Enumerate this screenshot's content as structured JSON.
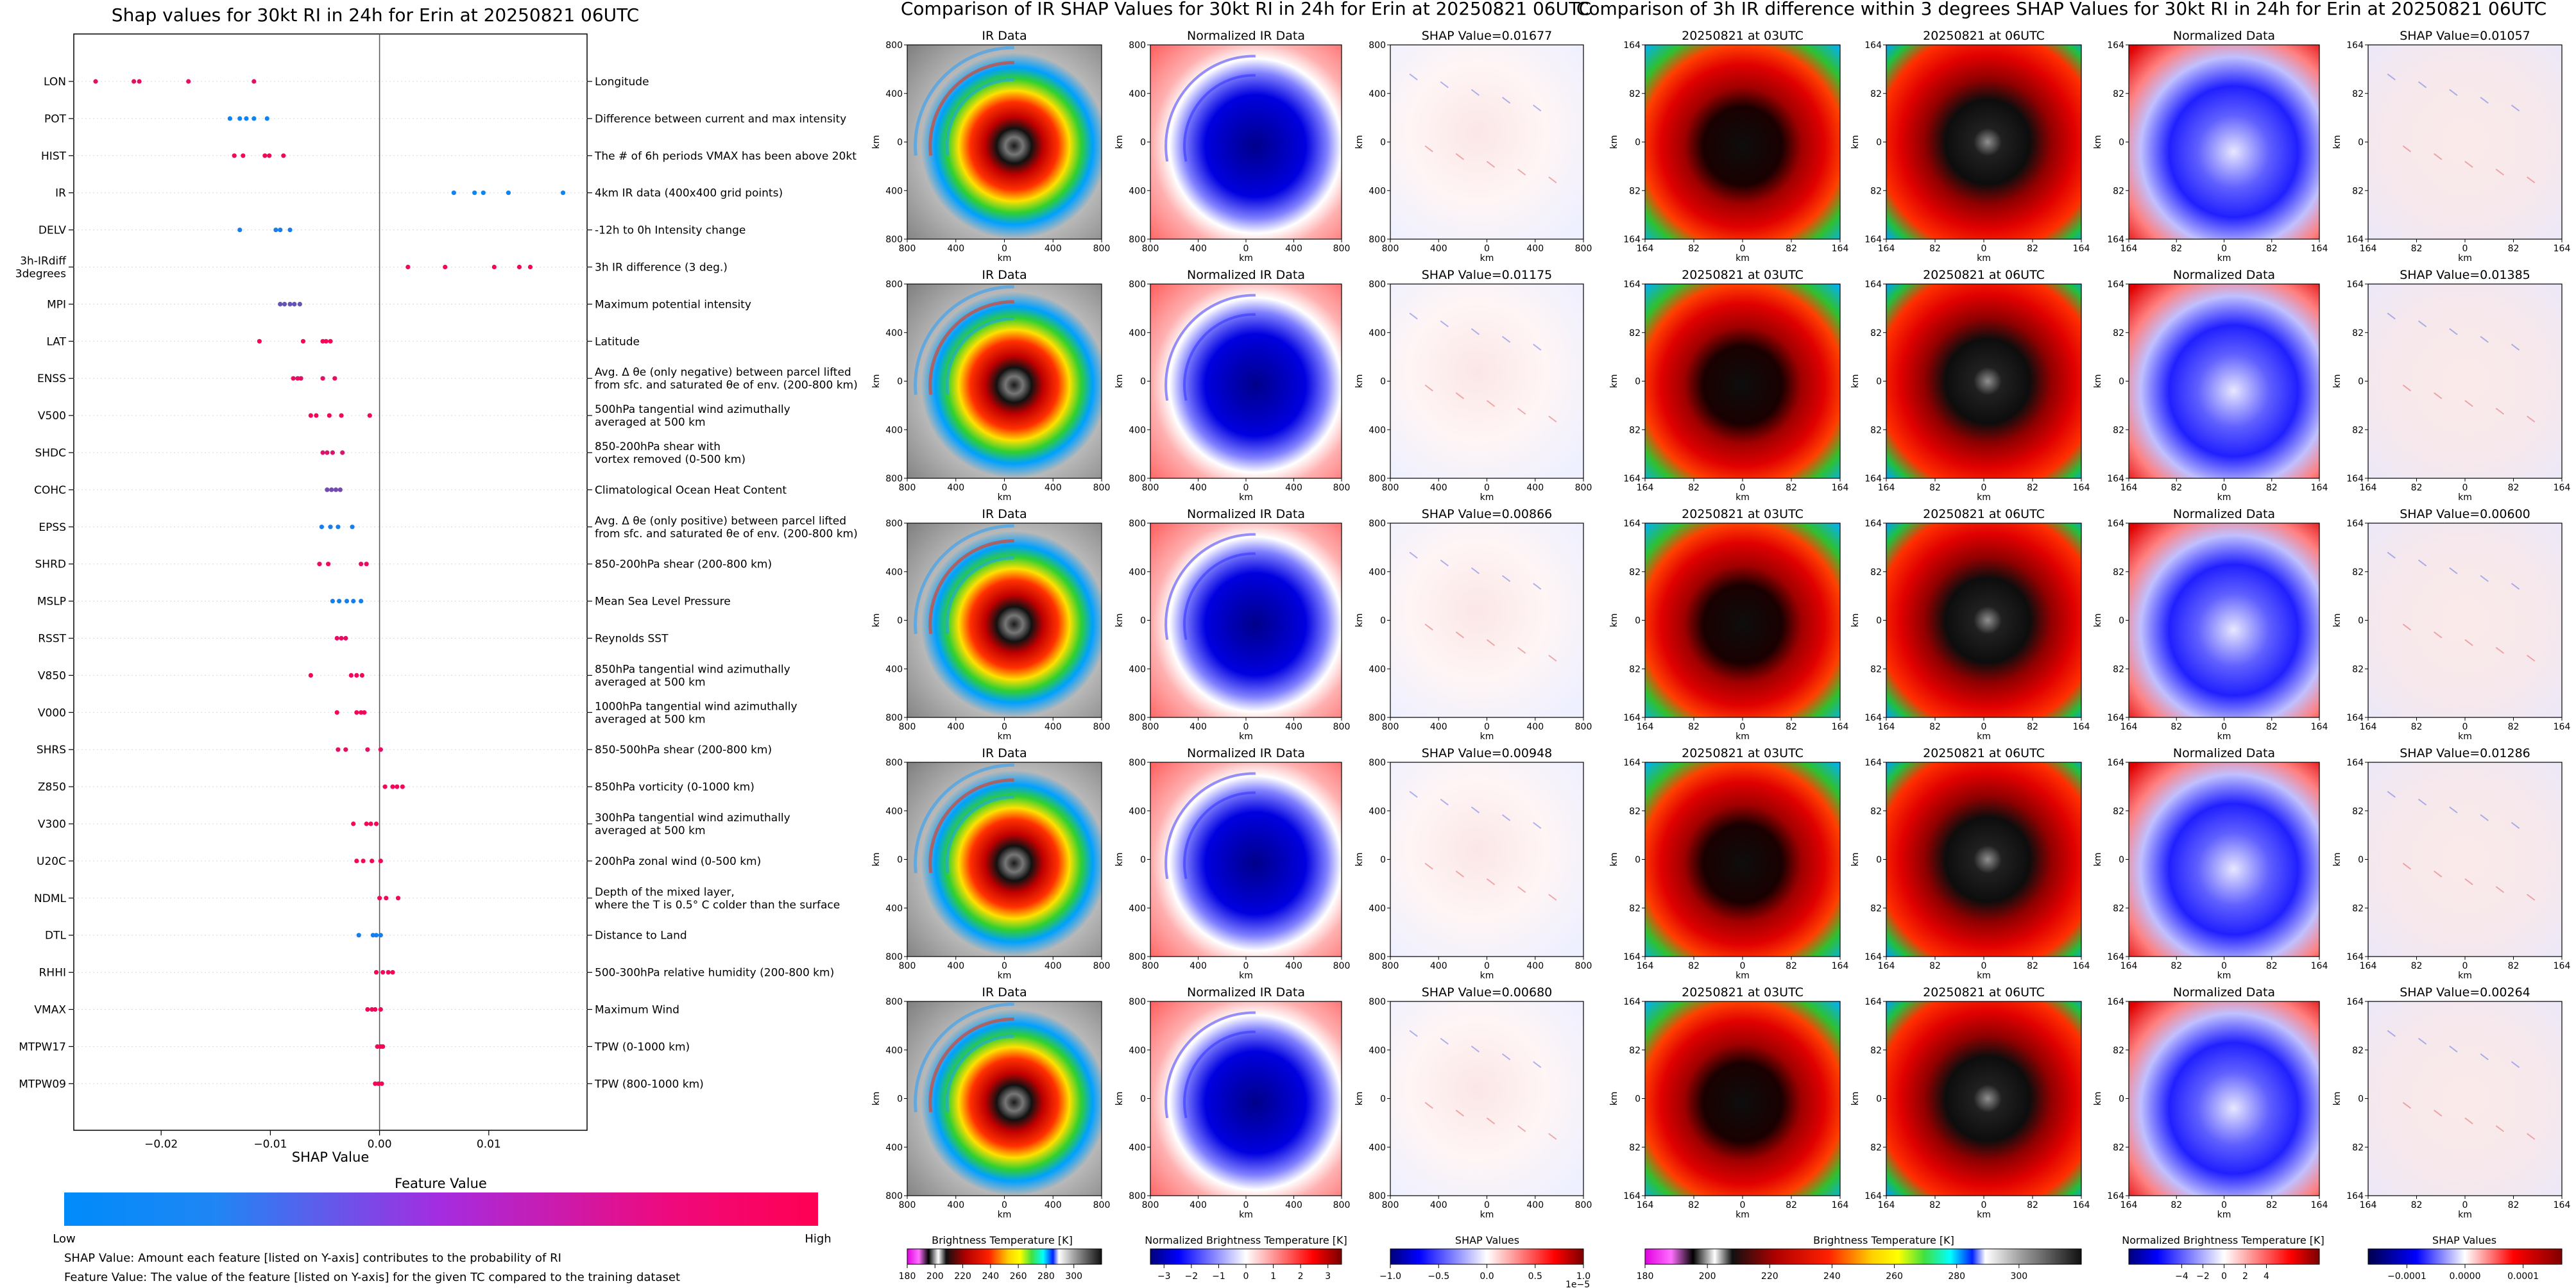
{
  "shap_panel": {
    "title": "Shap values for 30kt RI in 24h for Erin at 20250821 06UTC",
    "xlabel": "SHAP Value",
    "xticks": [
      "−0.02",
      "−0.01",
      "0.00",
      "0.01"
    ],
    "colorbar_title": "Feature Value",
    "colorbar_low": "Low",
    "colorbar_high": "High",
    "note1": "SHAP Value: Amount each feature [listed on Y-axis] contributes to the probability of RI",
    "note2": "Feature Value: The value of the feature [listed on Y-axis] for the given TC compared to the training dataset"
  },
  "ir_grid": {
    "title": "Comparison of IR SHAP Values for 30kt RI in 24h for Erin at 20250821 06UTC",
    "col_titles": [
      "IR Data",
      "Normalized IR Data"
    ],
    "shap_titles": [
      "SHAP Value=0.01677",
      "SHAP Value=0.01175",
      "SHAP Value=0.00866",
      "SHAP Value=0.00948",
      "SHAP Value=0.00680"
    ],
    "x_ticks": [
      "800",
      "400",
      "0",
      "400",
      "800"
    ],
    "y_ticks": [
      "800",
      "400",
      "0",
      "400",
      "800"
    ],
    "axis_label": "km",
    "cbar1_label": "Brightness Temperature [K]",
    "cbar1_ticks": [
      "180",
      "200",
      "220",
      "240",
      "260",
      "280",
      "300"
    ],
    "cbar2_label": "Normalized Brightness Temperature [K]",
    "cbar2_ticks": [
      "−3",
      "−2",
      "−1",
      "0",
      "1",
      "2",
      "3"
    ],
    "cbar3_label": "SHAP Values",
    "cbar3_ticks": [
      "−1.0",
      "−0.5",
      "0.0",
      "0.5",
      "1.0"
    ],
    "cbar3_exp": "1e−5"
  },
  "diff_grid": {
    "title": "Comparison of 3h IR difference within 3 degrees SHAP Values for 30kt RI in 24h for Erin at 20250821 06UTC",
    "col_titles": [
      "20250821 at 03UTC",
      "20250821 at 06UTC",
      "Normalized Data"
    ],
    "shap_titles": [
      "SHAP Value=0.01057",
      "SHAP Value=0.01385",
      "SHAP Value=0.00600",
      "SHAP Value=0.01286",
      "SHAP Value=0.00264"
    ],
    "x_ticks": [
      "164",
      "82",
      "0",
      "82",
      "164"
    ],
    "y_ticks": [
      "164",
      "82",
      "0",
      "82",
      "164"
    ],
    "axis_label": "km",
    "cbar1_label": "Brightness Temperature [K]",
    "cbar1_ticks": [
      "180",
      "200",
      "220",
      "240",
      "260",
      "280",
      "300"
    ],
    "cbar2_label": "Normalized Brightness Temperature [K]",
    "cbar2_ticks": [
      "−4",
      "−2",
      "0",
      "2",
      "4"
    ],
    "cbar3_label": "SHAP Values",
    "cbar3_ticks": [
      "−0.0001",
      "0.0000",
      "0.0001"
    ]
  },
  "colors": {
    "shap_low": "#008bfb",
    "shap_high": "#ff0052"
  },
  "chart_data": {
    "type": "scatter",
    "title": "Shap values for 30kt RI in 24h for Erin at 20250821 06UTC",
    "xlabel": "SHAP Value",
    "xlim": [
      -0.028,
      0.019
    ],
    "grid": false,
    "features": [
      {
        "code": "LON",
        "desc": "Longitude",
        "values": [
          -0.026,
          -0.0225,
          -0.022,
          -0.0175,
          -0.0115
        ],
        "color": 0.9
      },
      {
        "code": "POT",
        "desc": "Difference between current and max intensity",
        "values": [
          -0.0137,
          -0.0128,
          -0.0122,
          -0.0115,
          -0.0103
        ],
        "color": 0.05
      },
      {
        "code": "HIST",
        "desc": "The # of 6h periods VMAX has been above 20kt",
        "values": [
          -0.0133,
          -0.0125,
          -0.0105,
          -0.0101,
          -0.0088
        ],
        "color": 0.95
      },
      {
        "code": "IR",
        "desc": "4km IR data (400x400 grid points)",
        "values": [
          0.0068,
          0.0087,
          0.0095,
          0.0118,
          0.0168
        ],
        "color": 0.05
      },
      {
        "code": "DELV",
        "desc": "-12h to 0h Intensity change",
        "values": [
          -0.0128,
          -0.0095,
          -0.0091,
          -0.0082
        ],
        "color": 0.1
      },
      {
        "code": "3h-IRdiff 3degrees",
        "desc": "3h IR difference (3 deg.)",
        "values": [
          0.0026,
          0.006,
          0.0105,
          0.0128,
          0.0138
        ],
        "color": 0.95
      },
      {
        "code": "MPI",
        "desc": "Maximum potential intensity",
        "values": [
          -0.0091,
          -0.0087,
          -0.0082,
          -0.0078,
          -0.0073
        ],
        "color": 0.4
      },
      {
        "code": "LAT",
        "desc": "Latitude",
        "values": [
          -0.011,
          -0.007,
          -0.0052,
          -0.0049,
          -0.0045
        ],
        "color": 0.95
      },
      {
        "code": "ENSS",
        "desc": "Avg. Δ θe (only negative) between parcel lifted\nfrom sfc. and saturated θe of env. (200-800 km)",
        "values": [
          -0.0079,
          -0.0075,
          -0.0072,
          -0.0052,
          -0.0041
        ],
        "color": 0.9
      },
      {
        "code": "V500",
        "desc": "500hPa tangential wind azimuthally\naveraged at 500 km",
        "values": [
          -0.0063,
          -0.0058,
          -0.0046,
          -0.0035,
          -0.0009
        ],
        "color": 0.95
      },
      {
        "code": "SHDC",
        "desc": "850-200hPa shear with\nvortex removed (0-500 km)",
        "values": [
          -0.0052,
          -0.0048,
          -0.0043,
          -0.0034
        ],
        "color": 0.85
      },
      {
        "code": "COHC",
        "desc": "Climatological Ocean Heat Content",
        "values": [
          -0.0048,
          -0.0044,
          -0.004,
          -0.0036
        ],
        "color": 0.45
      },
      {
        "code": "EPSS",
        "desc": "Avg. Δ θe (only positive) between parcel lifted\nfrom sfc. and saturated θe of env. (200-800 km)",
        "values": [
          -0.0053,
          -0.0045,
          -0.0038,
          -0.0025
        ],
        "color": 0.1
      },
      {
        "code": "SHRD",
        "desc": "850-200hPa shear (200-800 km)",
        "values": [
          -0.0055,
          -0.0047,
          -0.0017,
          -0.0012
        ],
        "color": 0.92
      },
      {
        "code": "MSLP",
        "desc": "Mean Sea Level Pressure",
        "values": [
          -0.0043,
          -0.0037,
          -0.003,
          -0.0024,
          -0.0017
        ],
        "color": 0.08
      },
      {
        "code": "RSST",
        "desc": "Reynolds SST",
        "values": [
          -0.0039,
          -0.0035,
          -0.0031
        ],
        "color": 0.9
      },
      {
        "code": "V850",
        "desc": "850hPa tangential wind azimuthally\naveraged at 500 km",
        "values": [
          -0.0063,
          -0.0026,
          -0.0021,
          -0.0016
        ],
        "color": 0.95
      },
      {
        "code": "V000",
        "desc": "1000hPa tangential wind azimuthally\naveraged at 500 km",
        "values": [
          -0.0039,
          -0.0021,
          -0.0017,
          -0.0014
        ],
        "color": 0.95
      },
      {
        "code": "SHRS",
        "desc": "850-500hPa shear (200-800 km)",
        "values": [
          -0.0038,
          -0.0031,
          -0.0011,
          0.0001
        ],
        "color": 0.9
      },
      {
        "code": "Z850",
        "desc": "850hPa vorticity (0-1000 km)",
        "values": [
          0.0005,
          0.0012,
          0.0016,
          0.0021
        ],
        "color": 0.95
      },
      {
        "code": "V300",
        "desc": "300hPa tangential wind azimuthally\naveraged at 500 km",
        "values": [
          -0.0024,
          -0.0012,
          -0.0008,
          -0.0003
        ],
        "color": 0.95
      },
      {
        "code": "U20C",
        "desc": "200hPa zonal wind (0-500 km)",
        "values": [
          -0.0021,
          -0.0015,
          -0.0007,
          0.0001
        ],
        "color": 0.95
      },
      {
        "code": "NDML",
        "desc": "Depth of the mixed layer,\nwhere the T is 0.5° C colder than the surface",
        "values": [
          0.0,
          0.0006,
          0.0017
        ],
        "color": 0.95
      },
      {
        "code": "DTL",
        "desc": "Distance to Land",
        "values": [
          -0.0019,
          -0.0006,
          -0.0003,
          0.0001
        ],
        "color": 0.08
      },
      {
        "code": "RHHI",
        "desc": "500-300hPa relative humidity (200-800 km)",
        "values": [
          -0.0003,
          0.0003,
          0.0008,
          0.0012
        ],
        "color": 0.95
      },
      {
        "code": "VMAX",
        "desc": "Maximum Wind",
        "values": [
          -0.0011,
          -0.0007,
          -0.0004,
          0.0001
        ],
        "color": 0.95
      },
      {
        "code": "MTPW17",
        "desc": "TPW (0-1000 km)",
        "values": [
          -0.0002,
          0.0001,
          0.0003
        ],
        "color": 0.95
      },
      {
        "code": "MTPW09",
        "desc": "TPW (800-1000 km)",
        "values": [
          -0.0004,
          -0.0001,
          0.0002
        ],
        "color": 0.95
      }
    ]
  }
}
